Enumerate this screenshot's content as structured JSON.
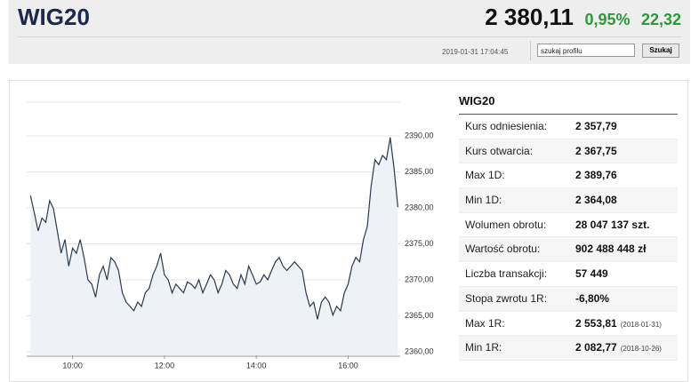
{
  "header": {
    "title": "WIG20",
    "price": "2 380,11",
    "change_percent": "0,95%",
    "change": "22,32",
    "timestamp": "2019-01-31 17:04:45",
    "search_placeholder": "szukaj profilu",
    "search_button": "Szukaj"
  },
  "chart_data": {
    "type": "line",
    "color": "#2b3a4a",
    "area_color": "#eef1f5",
    "grid": true,
    "x": [
      545,
      550,
      555,
      560,
      565,
      570,
      575,
      580,
      585,
      590,
      595,
      600,
      605,
      610,
      615,
      620,
      625,
      630,
      635,
      640,
      645,
      650,
      655,
      660,
      665,
      670,
      675,
      680,
      685,
      690,
      695,
      700,
      705,
      710,
      715,
      720,
      725,
      730,
      735,
      740,
      745,
      750,
      755,
      760,
      765,
      770,
      775,
      780,
      785,
      790,
      795,
      800,
      805,
      810,
      815,
      820,
      825,
      830,
      835,
      840,
      845,
      850,
      855,
      860,
      865,
      870,
      875,
      880,
      885,
      890,
      895,
      900,
      905,
      910,
      915,
      920,
      925,
      930,
      935,
      940,
      945,
      950,
      955,
      960,
      965,
      970,
      975,
      980,
      985,
      990,
      995,
      1000,
      1005,
      1010,
      1015,
      1020,
      1025
    ],
    "values": [
      2381.7,
      2379.3,
      2376.8,
      2378.6,
      2378.0,
      2381.0,
      2379.9,
      2376.8,
      2373.7,
      2375.6,
      2371.9,
      2374.4,
      2373.7,
      2375.6,
      2373.1,
      2370.0,
      2369.4,
      2367.6,
      2370.7,
      2371.9,
      2370.0,
      2373.1,
      2372.5,
      2371.3,
      2368.2,
      2366.9,
      2366.3,
      2365.7,
      2366.9,
      2366.3,
      2368.2,
      2368.8,
      2370.7,
      2371.9,
      2373.7,
      2370.7,
      2370.0,
      2368.2,
      2369.4,
      2368.8,
      2368.2,
      2369.7,
      2369.4,
      2368.8,
      2370.0,
      2368.2,
      2369.4,
      2370.7,
      2370.0,
      2368.2,
      2369.4,
      2371.3,
      2370.7,
      2369.4,
      2368.8,
      2370.7,
      2369.4,
      2371.9,
      2370.7,
      2369.4,
      2369.7,
      2370.7,
      2370.0,
      2371.3,
      2372.5,
      2373.1,
      2371.9,
      2371.3,
      2371.9,
      2372.5,
      2371.9,
      2371.3,
      2368.2,
      2366.3,
      2366.9,
      2364.5,
      2366.9,
      2367.6,
      2366.9,
      2365.1,
      2366.3,
      2365.7,
      2368.2,
      2369.4,
      2371.9,
      2373.1,
      2372.5,
      2375.6,
      2377.4,
      2383.0,
      2386.7,
      2386.0,
      2387.3,
      2386.7,
      2389.8,
      2385.5,
      2380.1
    ],
    "xlim": [
      540,
      1028
    ],
    "xticks": [
      {
        "value": 600,
        "label": "10:00"
      },
      {
        "value": 720,
        "label": "12:00"
      },
      {
        "value": 840,
        "label": "14:00"
      },
      {
        "value": 960,
        "label": "16:00"
      }
    ],
    "ylim": [
      2359.5,
      2394.7
    ],
    "yticks": [
      {
        "value": 2360,
        "label": "2360,00"
      },
      {
        "value": 2365,
        "label": "2365,00"
      },
      {
        "value": 2370,
        "label": "2370,00"
      },
      {
        "value": 2375,
        "label": "2375,00"
      },
      {
        "value": 2380,
        "label": "2380,00"
      },
      {
        "value": 2385,
        "label": "2385,00"
      },
      {
        "value": 2390,
        "label": "2390,00"
      }
    ]
  },
  "table": {
    "title": "WIG20",
    "rows": [
      {
        "label": "Kurs odniesienia:",
        "value": "2 357,79"
      },
      {
        "label": "Kurs otwarcia:",
        "value": "2 367,75"
      },
      {
        "label": "Max 1D:",
        "value": "2 389,76"
      },
      {
        "label": "Min 1D:",
        "value": "2 364,08"
      },
      {
        "label": "Wolumen obrotu:",
        "value": "28 047 137 szt."
      },
      {
        "label": "Wartość obrotu:",
        "value": "902 488 448 zł"
      },
      {
        "label": "Liczba transakcji:",
        "value": "57 449"
      },
      {
        "label": "Stopa zwrotu 1R:",
        "value": "-6,80%"
      },
      {
        "label": "Max 1R:",
        "value": "2 553,81",
        "note": "(2018-01-31)"
      },
      {
        "label": "Min 1R:",
        "value": "2 082,77",
        "note": "(2018-10-26)"
      }
    ]
  }
}
